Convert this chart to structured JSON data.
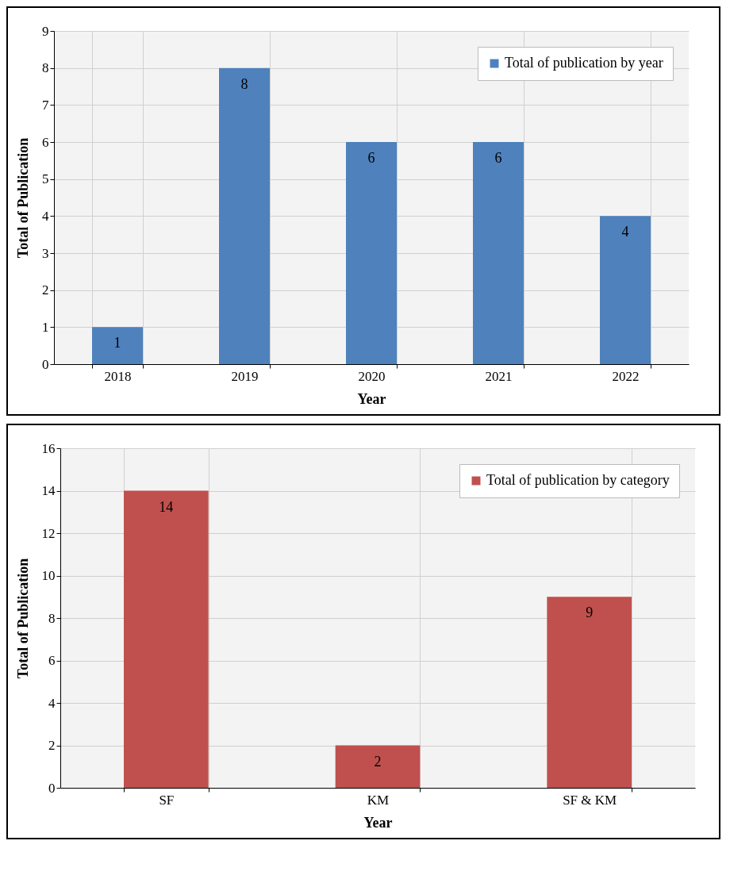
{
  "chart_data": [
    {
      "type": "bar",
      "xlabel": "Year",
      "ylabel": "Total of Publication",
      "categories": [
        "2018",
        "2019",
        "2020",
        "2021",
        "2022"
      ],
      "series": [
        {
          "name": "Total of publication by year",
          "color": "#4f81bd",
          "values": [
            1,
            8,
            6,
            6,
            4
          ]
        }
      ],
      "ylim": [
        0,
        9
      ],
      "yticks": [
        0,
        1,
        2,
        3,
        4,
        5,
        6,
        7,
        8,
        9
      ],
      "grid": true,
      "legend": "top right",
      "data_labels": true
    },
    {
      "type": "bar",
      "xlabel": "Year",
      "ylabel": "Total of Publication",
      "categories": [
        "SF",
        "KM",
        "SF & KM"
      ],
      "series": [
        {
          "name": "Total of publication by category",
          "color": "#c0504d",
          "values": [
            14,
            2,
            9
          ]
        }
      ],
      "ylim": [
        0,
        16
      ],
      "yticks": [
        0,
        2,
        4,
        6,
        8,
        10,
        12,
        14,
        16
      ],
      "grid": true,
      "legend": "top right",
      "data_labels": true
    }
  ]
}
